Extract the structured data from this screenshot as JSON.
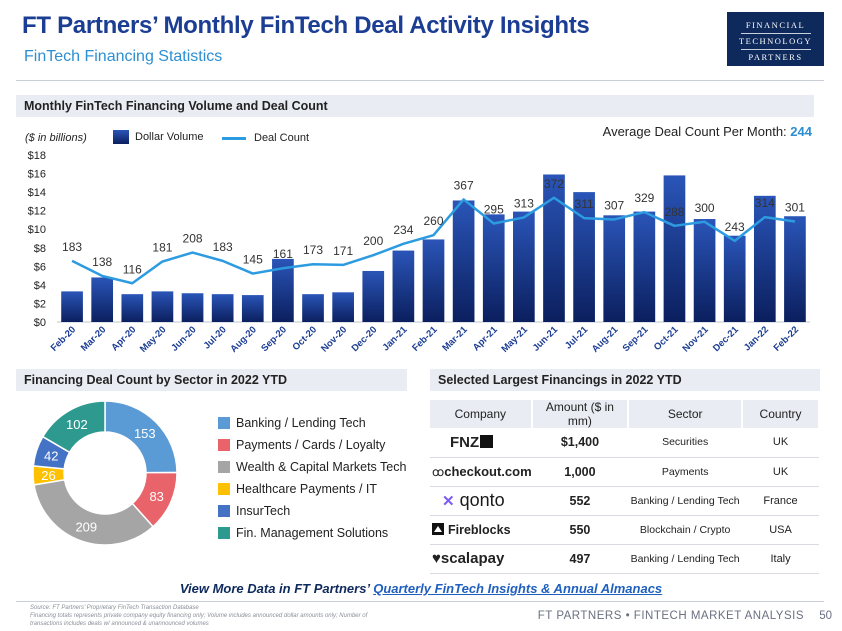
{
  "header": {
    "title": "FT Partners’ Monthly FinTech Deal Activity Insights",
    "subtitle": "FinTech Financing Statistics",
    "logo_lines": [
      "FINANCIAL",
      "TECHNOLOGY",
      "PARTNERS"
    ]
  },
  "main_section": {
    "heading": "Monthly FinTech Financing Volume and Deal Count",
    "unit_note": "($ in billions)",
    "legend_bar": "Dollar Volume",
    "legend_line": "Deal Count",
    "avg_label": "Average Deal Count Per Month:",
    "avg_value": "244"
  },
  "colors": {
    "bar_top": "#2a55b8",
    "bar_bottom": "#0b1f5e",
    "line": "#2c9be0",
    "title": "#1b3d93"
  },
  "chart_data": [
    {
      "type": "bar+line",
      "categories": [
        "Feb-20",
        "Mar-20",
        "Apr-20",
        "May-20",
        "Jun-20",
        "Jul-20",
        "Aug-20",
        "Sep-20",
        "Oct-20",
        "Nov-20",
        "Dec-20",
        "Jan-21",
        "Feb-21",
        "Mar-21",
        "Apr-21",
        "May-21",
        "Jun-21",
        "Jul-21",
        "Aug-21",
        "Sep-21",
        "Oct-21",
        "Nov-21",
        "Dec-21",
        "Jan-22",
        "Feb-22"
      ],
      "series": [
        {
          "name": "Dollar Volume",
          "type": "bar",
          "axis": "left",
          "values": [
            3.3,
            4.8,
            3.0,
            3.3,
            3.1,
            3.0,
            2.9,
            6.8,
            3.0,
            3.2,
            5.5,
            7.7,
            8.9,
            13.1,
            11.6,
            11.9,
            15.9,
            14.0,
            11.5,
            11.9,
            15.8,
            11.1,
            9.3,
            13.6,
            11.4
          ]
        },
        {
          "name": "Deal Count",
          "type": "line",
          "axis": "right",
          "values": [
            183,
            138,
            116,
            181,
            208,
            183,
            145,
            161,
            173,
            171,
            200,
            234,
            260,
            367,
            295,
            313,
            372,
            311,
            307,
            329,
            288,
            300,
            243,
            314,
            301
          ]
        }
      ],
      "y_ticks": [
        "$0",
        "$2",
        "$4",
        "$6",
        "$8",
        "$10",
        "$12",
        "$14",
        "$16",
        "$18"
      ],
      "ylim": [
        0,
        18
      ],
      "legend": "top-left"
    },
    {
      "type": "pie",
      "title": "Financing Deal Count by Sector in 2022 YTD",
      "slices": [
        {
          "label": "Banking / Lending Tech",
          "value": 153,
          "color": "#5b9bd5"
        },
        {
          "label": "Payments / Cards / Loyalty",
          "value": 83,
          "color": "#e8646a"
        },
        {
          "label": "Wealth & Capital Markets Tech",
          "value": 209,
          "color": "#a5a5a5"
        },
        {
          "label": "Healthcare Payments / IT",
          "value": 26,
          "color": "#ffc000"
        },
        {
          "label": "InsurTech",
          "value": 42,
          "color": "#4472c4"
        },
        {
          "label": "Fin. Management Solutions",
          "value": 102,
          "color": "#2e9a8f"
        }
      ]
    }
  ],
  "largest_section": {
    "heading": "Selected Largest Financings in 2022 YTD",
    "columns": [
      "Company",
      "Amount ($ in mm)",
      "Sector",
      "Country"
    ],
    "rows": [
      {
        "company": "FNZ",
        "amount": "$1,400",
        "sector": "Securities",
        "country": "UK"
      },
      {
        "company": "checkout.com",
        "amount": "1,000",
        "sector": "Payments",
        "country": "UK"
      },
      {
        "company": "qonto",
        "amount": "552",
        "sector": "Banking / Lending Tech",
        "country": "France"
      },
      {
        "company": "Fireblocks",
        "amount": "550",
        "sector": "Blockchain / Crypto",
        "country": "USA"
      },
      {
        "company": "scalapay",
        "amount": "497",
        "sector": "Banking / Lending Tech",
        "country": "Italy"
      }
    ]
  },
  "footer": {
    "link_prefix": "View More Data in FT Partners’",
    "link_text": "Quarterly FinTech Insights & Annual Almanacs",
    "source_1": "Source: FT Partners’ Proprietary FinTech Transaction Database",
    "source_2": "Financing totals represents private company equity financing only; Volume includes announced dollar amounts only; Number of transactions includes deals w/ announced & unannounced volumes",
    "brand": "FT PARTNERS • FINTECH MARKET ANALYSIS",
    "page": "50"
  }
}
